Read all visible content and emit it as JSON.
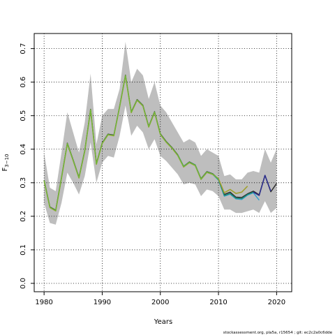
{
  "chart_data": {
    "type": "line",
    "xlabel": "Years",
    "ylabel_main": "F",
    "ylabel_sub": "3−10",
    "xlim": [
      1978.3,
      2022.6
    ],
    "ylim": [
      -0.025,
      0.745
    ],
    "xticks": [
      1980,
      1990,
      2000,
      2010,
      2020
    ],
    "yticks": [
      0.0,
      0.1,
      0.2,
      0.3,
      0.4,
      0.5,
      0.6,
      0.7
    ],
    "ytick_labels": [
      "0.0",
      "0.1",
      "0.2",
      "0.3",
      "0.4",
      "0.5",
      "0.6",
      "0.7"
    ],
    "grid": true,
    "band": {
      "color": "#bebebe",
      "x": [
        1980,
        1981,
        1982,
        1983,
        1984,
        1985,
        1986,
        1987,
        1988,
        1989,
        1990,
        1991,
        1992,
        1993,
        1994,
        1995,
        1996,
        1997,
        1998,
        1999,
        2000,
        2001,
        2002,
        2003,
        2004,
        2005,
        2006,
        2007,
        2008,
        2009,
        2010,
        2011,
        2012,
        2013,
        2014,
        2015,
        2016,
        2017,
        2018,
        2019,
        2020
      ],
      "upper": [
        0.39,
        0.285,
        0.275,
        0.39,
        0.51,
        0.45,
        0.39,
        0.48,
        0.625,
        0.415,
        0.5,
        0.52,
        0.52,
        0.58,
        0.72,
        0.6,
        0.64,
        0.62,
        0.55,
        0.6,
        0.53,
        0.51,
        0.48,
        0.45,
        0.42,
        0.43,
        0.42,
        0.38,
        0.4,
        0.39,
        0.38,
        0.32,
        0.325,
        0.31,
        0.31,
        0.33,
        0.335,
        0.33,
        0.4,
        0.36,
        0.4
      ],
      "lower": [
        0.24,
        0.18,
        0.175,
        0.24,
        0.33,
        0.3,
        0.265,
        0.32,
        0.42,
        0.3,
        0.36,
        0.38,
        0.375,
        0.44,
        0.53,
        0.44,
        0.47,
        0.45,
        0.4,
        0.43,
        0.38,
        0.365,
        0.345,
        0.325,
        0.295,
        0.3,
        0.295,
        0.26,
        0.28,
        0.275,
        0.26,
        0.22,
        0.22,
        0.21,
        0.21,
        0.215,
        0.22,
        0.21,
        0.245,
        0.21,
        0.225
      ]
    },
    "series": [
      {
        "color": "#2a2a2a",
        "width": 1.4,
        "x": [
          1980,
          1981,
          1982,
          1983,
          1984,
          1985,
          1986,
          1987,
          1988,
          1989,
          1990,
          1991,
          1992,
          1993,
          1994,
          1995,
          1996,
          1997,
          1998,
          1999,
          2000,
          2001,
          2002,
          2003,
          2004,
          2005,
          2006,
          2007,
          2008,
          2009,
          2010,
          2011,
          2012,
          2013,
          2014,
          2015,
          2016,
          2017,
          2018,
          2019,
          2020
        ],
        "values": [
          0.308,
          0.228,
          0.218,
          0.316,
          0.418,
          0.368,
          0.316,
          0.396,
          0.519,
          0.357,
          0.419,
          0.445,
          0.442,
          0.528,
          0.621,
          0.511,
          0.548,
          0.531,
          0.468,
          0.512,
          0.446,
          0.423,
          0.405,
          0.383,
          0.349,
          0.362,
          0.353,
          0.312,
          0.333,
          0.327,
          0.311,
          0.265,
          0.272,
          0.257,
          0.256,
          0.267,
          0.275,
          0.264,
          0.322,
          0.273,
          0.298
        ]
      },
      {
        "color": "#2e9fcf",
        "width": 1.4,
        "x": [
          2003,
          2004,
          2005,
          2006,
          2007,
          2008,
          2009,
          2010,
          2011,
          2012,
          2013,
          2014,
          2015,
          2016,
          2017
        ],
        "values": [
          0.382,
          0.348,
          0.36,
          0.352,
          0.31,
          0.331,
          0.325,
          0.308,
          0.26,
          0.266,
          0.252,
          0.25,
          0.263,
          0.27,
          0.248
        ]
      },
      {
        "color": "#1f8a70",
        "width": 1.4,
        "x": [
          2003,
          2004,
          2005,
          2006,
          2007,
          2008,
          2009,
          2010,
          2011,
          2012,
          2013,
          2014,
          2015,
          2016
        ],
        "values": [
          0.383,
          0.349,
          0.361,
          0.353,
          0.311,
          0.332,
          0.326,
          0.309,
          0.262,
          0.268,
          0.254,
          0.253,
          0.265,
          0.272
        ]
      },
      {
        "color": "#a0a030",
        "width": 1.6,
        "x": [
          1980,
          1981,
          1982,
          1983,
          1984,
          1985,
          1986,
          1987,
          1988,
          1989,
          1990,
          1991,
          1992,
          1993,
          1994,
          1995,
          1996,
          1997,
          1998,
          1999,
          2000,
          2001,
          2002,
          2003,
          2004,
          2005,
          2006,
          2007,
          2008,
          2009,
          2010,
          2011,
          2012,
          2013,
          2014,
          2015
        ],
        "values": [
          0.306,
          0.226,
          0.216,
          0.314,
          0.416,
          0.366,
          0.314,
          0.394,
          0.517,
          0.355,
          0.417,
          0.443,
          0.44,
          0.526,
          0.619,
          0.509,
          0.546,
          0.529,
          0.466,
          0.51,
          0.444,
          0.421,
          0.403,
          0.381,
          0.347,
          0.36,
          0.351,
          0.31,
          0.331,
          0.325,
          0.312,
          0.27,
          0.28,
          0.268,
          0.272,
          0.29
        ]
      },
      {
        "color": "#6fb83a",
        "width": 1.3,
        "x": [
          1980,
          1981,
          1982,
          1983,
          1984,
          1985,
          1986,
          1987,
          1988,
          1989,
          1990,
          1991,
          1992,
          1993,
          1994,
          1995,
          1996,
          1997,
          1998,
          1999,
          2000,
          2001,
          2002,
          2003,
          2004,
          2005,
          2006,
          2007,
          2008,
          2009,
          2010
        ],
        "values": [
          0.307,
          0.227,
          0.217,
          0.315,
          0.417,
          0.367,
          0.315,
          0.395,
          0.518,
          0.356,
          0.418,
          0.444,
          0.441,
          0.527,
          0.62,
          0.51,
          0.547,
          0.53,
          0.467,
          0.511,
          0.445,
          0.422,
          0.404,
          0.382,
          0.348,
          0.361,
          0.352,
          0.311,
          0.332,
          0.326,
          0.311
        ]
      },
      {
        "color": "#2b2e8f",
        "width": 1.5,
        "x": [
          2016,
          2017,
          2018,
          2019
        ],
        "values": [
          0.272,
          0.262,
          0.322,
          0.275
        ]
      }
    ]
  },
  "footer": "stockassessment.org, pla5a, r15654 ; git: ec2c2a0c6dde"
}
